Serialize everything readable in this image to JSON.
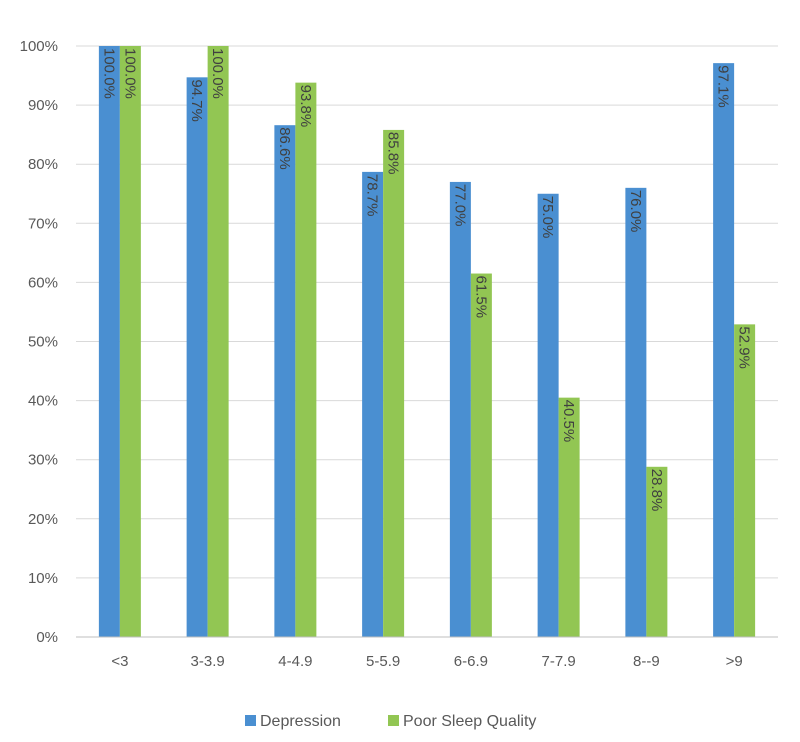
{
  "chart_data": {
    "type": "bar",
    "categories": [
      "<3",
      "3-3.9",
      "4-4.9",
      "5-5.9",
      "6-6.9",
      "7-7.9",
      "8--9",
      ">9"
    ],
    "series": [
      {
        "name": "Depression",
        "color": "#4a8fd1",
        "values": [
          100.0,
          94.7,
          86.6,
          78.7,
          77.0,
          75.0,
          76.0,
          97.1
        ],
        "labels": [
          "100.0%",
          "94.7%",
          "86.6%",
          "78.7%",
          "77.0%",
          "75.0%",
          "76.0%",
          "97.1%"
        ]
      },
      {
        "name": "Poor Sleep Quality",
        "color": "#92c653",
        "values": [
          100.0,
          100.0,
          93.8,
          85.8,
          61.5,
          40.5,
          28.8,
          52.9
        ],
        "labels": [
          "100.0%",
          "100.0%",
          "93.8%",
          "85.8%",
          "61.5%",
          "40.5%",
          "28.8%",
          "52.9%"
        ]
      }
    ],
    "yticks": [
      "0%",
      "10%",
      "20%",
      "30%",
      "40%",
      "50%",
      "60%",
      "70%",
      "80%",
      "90%",
      "100%"
    ],
    "ylim": [
      0,
      100
    ],
    "grid": true,
    "legend_position": "bottom"
  }
}
